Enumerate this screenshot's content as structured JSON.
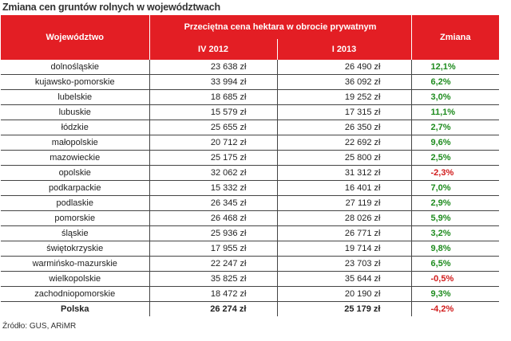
{
  "title": "Zmiana cen gruntów rolnych w województwach",
  "headers": {
    "voivodeship": "Województwo",
    "price_group": "Przeciętna cena hektara w obrocie prywatnym",
    "period1": "IV 2012",
    "period2": "I 2013",
    "change": "Zmiana"
  },
  "rows": [
    {
      "name": "dolnośląskie",
      "p1": "23 638 zł",
      "p2": "26 490 zł",
      "chg": "12,1%"
    },
    {
      "name": "kujawsko-pomorskie",
      "p1": "33 994 zł",
      "p2": "36 092 zł",
      "chg": "6,2%"
    },
    {
      "name": "lubelskie",
      "p1": "18 685 zł",
      "p2": "19 252 zł",
      "chg": "3,0%"
    },
    {
      "name": "lubuskie",
      "p1": "15 579 zł",
      "p2": "17 315 zł",
      "chg": "11,1%"
    },
    {
      "name": "łódzkie",
      "p1": "25 655 zł",
      "p2": "26 350 zł",
      "chg": "2,7%"
    },
    {
      "name": "małopolskie",
      "p1": "20 712 zł",
      "p2": "22 692 zł",
      "chg": "9,6%"
    },
    {
      "name": "mazowieckie",
      "p1": "25 175 zł",
      "p2": "25 800 zł",
      "chg": "2,5%"
    },
    {
      "name": "opolskie",
      "p1": "32 062 zł",
      "p2": "31 312 zł",
      "chg": "-2,3%"
    },
    {
      "name": "podkarpackie",
      "p1": "15 332 zł",
      "p2": "16 401 zł",
      "chg": "7,0%"
    },
    {
      "name": "podlaskie",
      "p1": "26 345 zł",
      "p2": "27 119 zł",
      "chg": "2,9%"
    },
    {
      "name": "pomorskie",
      "p1": "26 468 zł",
      "p2": "28 026 zł",
      "chg": "5,9%"
    },
    {
      "name": "śląskie",
      "p1": "25 936 zł",
      "p2": "26 771 zł",
      "chg": "3,2%"
    },
    {
      "name": "świętokrzyskie",
      "p1": "17 955 zł",
      "p2": "19 714 zł",
      "chg": "9,8%"
    },
    {
      "name": "warmińsko-mazurskie",
      "p1": "22 247 zł",
      "p2": "23 703 zł",
      "chg": "6,5%"
    },
    {
      "name": "wielkopolskie",
      "p1": "35 825 zł",
      "p2": "35 644 zł",
      "chg": "-0,5%"
    },
    {
      "name": "zachodniopomorskie",
      "p1": "18 472 zł",
      "p2": "20 190 zł",
      "chg": "9,3%"
    }
  ],
  "total": {
    "name": "Polska",
    "p1": "26 274 zł",
    "p2": "25 179 zł",
    "chg": "-4,2%"
  },
  "source": "Źródło: GUS, ARiMR",
  "colors": {
    "header_bg": "#e31e24",
    "positive": "#1e8b1e",
    "negative": "#d11c1c"
  }
}
